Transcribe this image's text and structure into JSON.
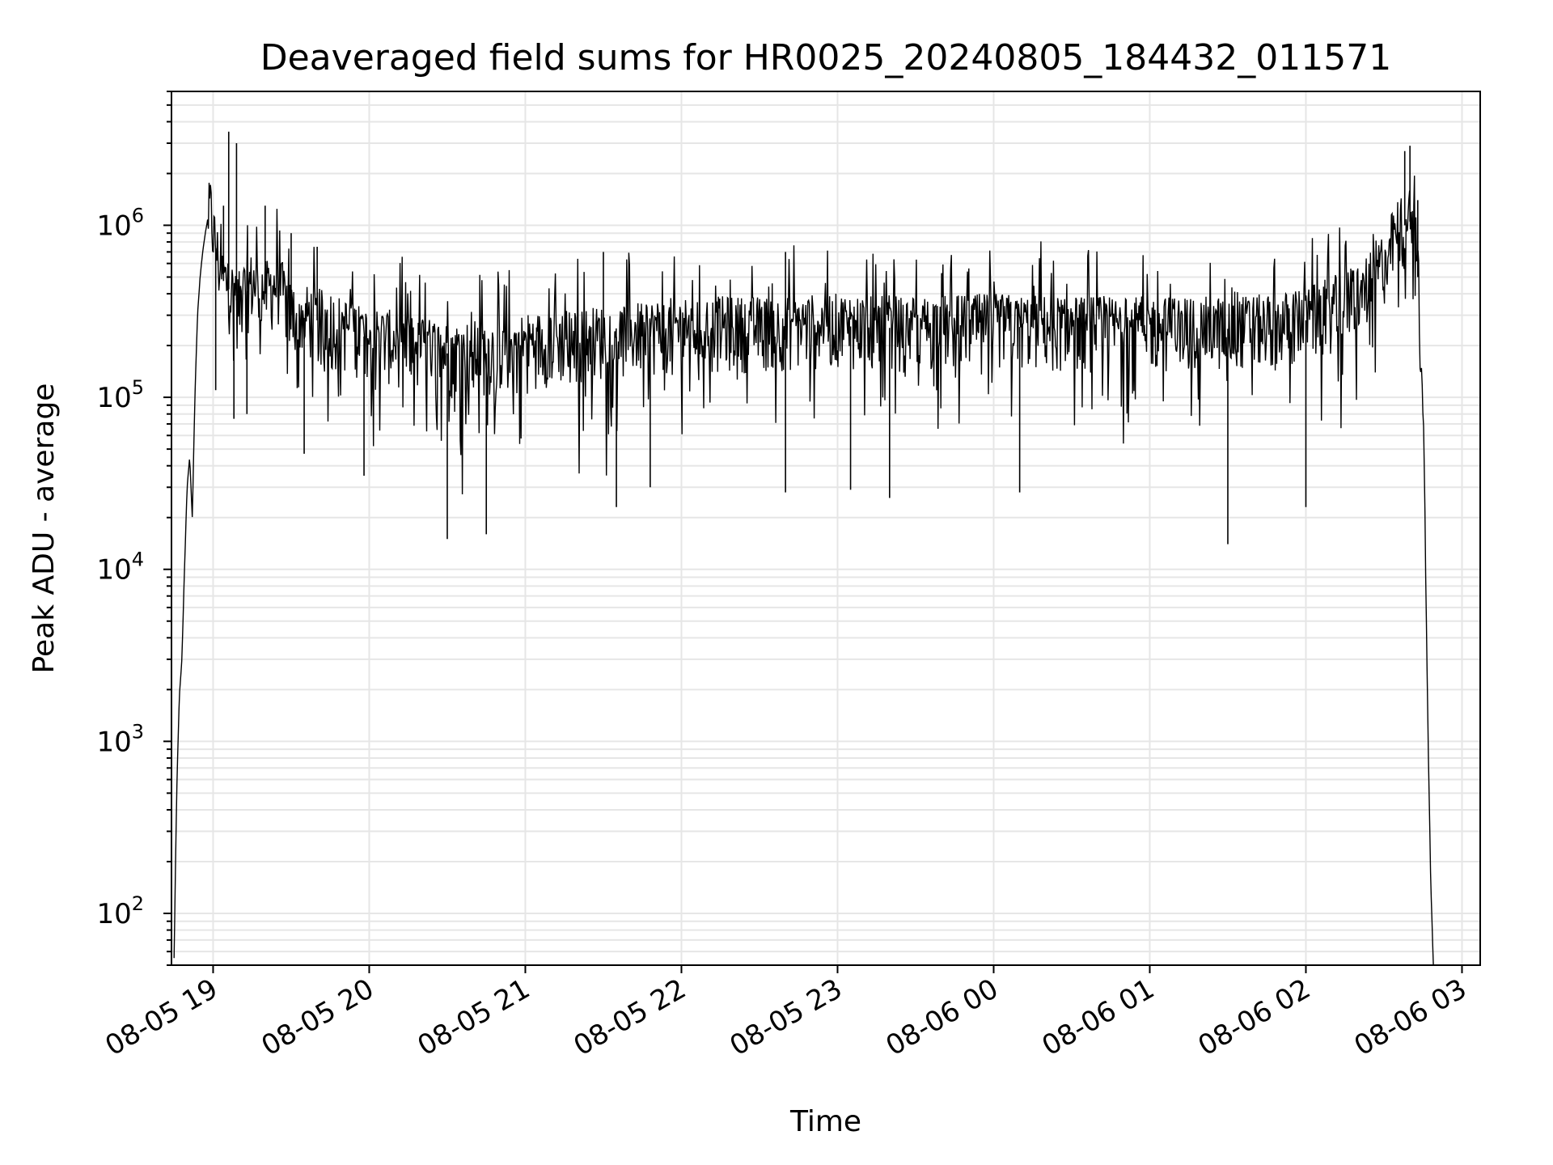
{
  "chart_data": {
    "type": "line",
    "title": "Deaveraged field sums for HR0025_20240805_184432_011571",
    "xlabel": "Time",
    "ylabel": "Peak ADU - average",
    "yscale": "log",
    "ylim": [
      50,
      6000000
    ],
    "xlim": [
      "2024-08-05 18:44",
      "2024-08-06 03:07"
    ],
    "grid": true,
    "x_ticks": [
      "08-05 19",
      "08-05 20",
      "08-05 21",
      "08-05 22",
      "08-05 23",
      "08-06 00",
      "08-06 01",
      "08-06 02",
      "08-06 03"
    ],
    "y_ticks": [
      {
        "base": "10",
        "exp": "2",
        "value": 100
      },
      {
        "base": "10",
        "exp": "3",
        "value": 1000
      },
      {
        "base": "10",
        "exp": "4",
        "value": 10000
      },
      {
        "base": "10",
        "exp": "5",
        "value": 100000
      },
      {
        "base": "10",
        "exp": "6",
        "value": 1000000
      }
    ],
    "series": [
      {
        "color": "#000000",
        "x": [
          "2024-08-05 18:45",
          "2024-08-05 18:46",
          "2024-08-05 18:47",
          "2024-08-05 18:48",
          "2024-08-05 18:49",
          "2024-08-05 18:50",
          "2024-08-05 18:51",
          "2024-08-05 18:52",
          "2024-08-05 18:53",
          "2024-08-05 18:54",
          "2024-08-05 18:55",
          "2024-08-05 18:56",
          "2024-08-05 18:57",
          "2024-08-05 18:58",
          "2024-08-05 18:59",
          "2024-08-05 19:00",
          "2024-08-05 19:02",
          "2024-08-05 19:03",
          "2024-08-05 19:05",
          "2024-08-05 19:07",
          "2024-08-05 19:10",
          "2024-08-05 19:12",
          "2024-08-05 19:15",
          "2024-08-05 19:20",
          "2024-08-05 19:25",
          "2024-08-05 19:30",
          "2024-08-05 19:40",
          "2024-08-05 20:00",
          "2024-08-05 20:30",
          "2024-08-05 20:45",
          "2024-08-05 21:00",
          "2024-08-05 21:30",
          "2024-08-05 22:00",
          "2024-08-05 22:30",
          "2024-08-05 23:00",
          "2024-08-05 23:30",
          "2024-08-06 00:00",
          "2024-08-06 00:30",
          "2024-08-06 01:00",
          "2024-08-06 01:30",
          "2024-08-06 01:50",
          "2024-08-06 02:00",
          "2024-08-06 02:15",
          "2024-08-06 02:25",
          "2024-08-06 02:30",
          "2024-08-06 02:35",
          "2024-08-06 02:38",
          "2024-08-06 02:40",
          "2024-08-06 02:42",
          "2024-08-06 02:43",
          "2024-08-06 02:45",
          "2024-08-06 02:46",
          "2024-08-06 02:47",
          "2024-08-06 02:48",
          "2024-08-06 02:49"
        ],
        "y": [
          55,
          500,
          1800,
          3000,
          10000,
          30000,
          45000,
          20000,
          100000,
          300000,
          500000,
          700000,
          900000,
          1100000,
          1200000,
          900000,
          600000,
          500000,
          450000,
          400000,
          350000,
          400000,
          450000,
          400000,
          450000,
          300000,
          280000,
          220000,
          180000,
          180000,
          200000,
          220000,
          250000,
          250000,
          260000,
          250000,
          260000,
          250000,
          250000,
          250000,
          260000,
          280000,
          350000,
          450000,
          600000,
          900000,
          1000000,
          1050000,
          900000,
          500000,
          100000,
          10000,
          1000,
          150,
          50
        ],
        "spikes_up": [
          [
            "2024-08-05 19:06",
            3500000
          ],
          [
            "2024-08-05 19:09",
            3000000
          ],
          [
            "2024-08-05 19:04",
            1300000
          ],
          [
            "2024-08-05 19:20",
            1300000
          ],
          [
            "2024-08-05 19:30",
            900000
          ],
          [
            "2024-08-05 19:40",
            750000
          ],
          [
            "2024-08-06 02:38",
            2700000
          ],
          [
            "2024-08-06 02:40",
            2900000
          ],
          [
            "2024-08-06 02:43",
            1400000
          ],
          [
            "2024-08-05 21:30",
            700000
          ],
          [
            "2024-08-05 22:40",
            700000
          ]
        ],
        "spikes_down": [
          [
            "2024-08-05 19:01",
            110000
          ],
          [
            "2024-08-05 19:08",
            75000
          ],
          [
            "2024-08-05 19:13",
            80000
          ],
          [
            "2024-08-05 19:35",
            47000
          ],
          [
            "2024-08-05 19:58",
            35000
          ],
          [
            "2024-08-05 20:30",
            15000
          ],
          [
            "2024-08-05 20:45",
            16000
          ],
          [
            "2024-08-05 21:35",
            23000
          ],
          [
            "2024-08-05 21:48",
            30000
          ],
          [
            "2024-08-05 22:40",
            28000
          ],
          [
            "2024-08-05 23:05",
            29000
          ],
          [
            "2024-08-05 23:20",
            26000
          ],
          [
            "2024-08-06 00:10",
            28000
          ],
          [
            "2024-08-06 01:30",
            14000
          ],
          [
            "2024-08-06 02:00",
            23000
          ]
        ]
      }
    ]
  }
}
